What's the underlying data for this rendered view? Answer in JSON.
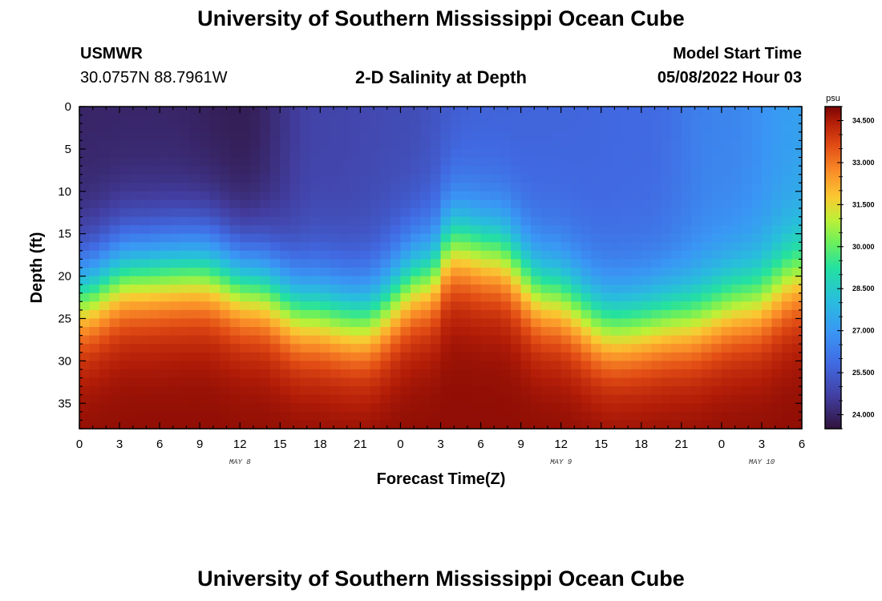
{
  "header": {
    "title": "University of Southern Mississippi Ocean Cube",
    "station": "USMWR",
    "coords": "30.0757N  88.7961W",
    "plot_title": "2-D Salinity at Depth",
    "model_label": "Model Start Time",
    "model_time": "05/08/2022 Hour 03"
  },
  "footer": {
    "title": "University of Southern Mississippi Ocean Cube"
  },
  "chart_data": {
    "type": "heatmap",
    "title": "2-D Salinity at Depth",
    "xlabel": "Forecast Time(Z)",
    "ylabel": "Depth (ft)",
    "x_hours_from_may8_00z": [
      0,
      54
    ],
    "x_tick_labels": [
      "0",
      "3",
      "6",
      "9",
      "12",
      "15",
      "18",
      "21",
      "0",
      "3",
      "6",
      "9",
      "12",
      "15",
      "18",
      "21",
      "0",
      "3",
      "6"
    ],
    "date_labels": [
      {
        "label": "MAY 8",
        "hour": 12
      },
      {
        "label": "MAY 9",
        "hour": 36
      },
      {
        "label": "MAY 10",
        "hour": 51
      }
    ],
    "ylim": [
      0,
      38
    ],
    "y_ticks": [
      0,
      5,
      10,
      15,
      20,
      25,
      30,
      35
    ],
    "colorbar": {
      "unit": "psu",
      "min": 23.5,
      "max": 35.0,
      "ticks": [
        "34.500",
        "33.000",
        "31.500",
        "30.000",
        "28.500",
        "27.000",
        "25.500",
        "24.000"
      ]
    },
    "halocline_depth_ft": {
      "hours": [
        0,
        4,
        9,
        13,
        17,
        21,
        26,
        28,
        31,
        35,
        40,
        45,
        50,
        54
      ],
      "values": [
        22,
        19.5,
        19,
        21,
        24,
        25,
        20,
        16,
        17,
        22,
        26,
        25,
        23,
        20
      ]
    },
    "surface_salinity_psu": {
      "hours": [
        0,
        6,
        12,
        18,
        24,
        30,
        36,
        42,
        48,
        54
      ],
      "values": [
        24.0,
        24.0,
        23.8,
        24.8,
        25.0,
        25.6,
        25.7,
        25.8,
        26.5,
        27.2
      ]
    },
    "bottom_salinity_psu": 34.8
  }
}
